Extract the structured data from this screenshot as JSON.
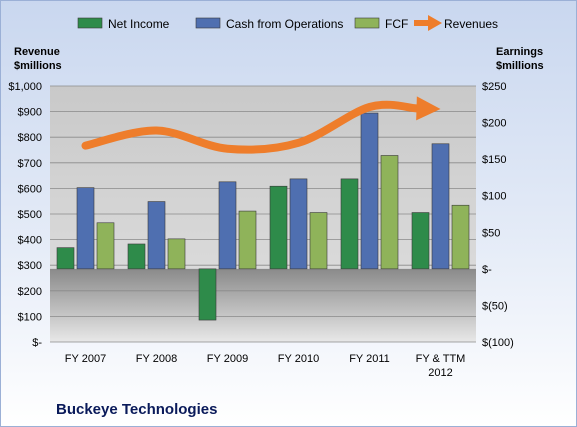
{
  "chart_data": {
    "type": "bar",
    "company": "Buckeye Technologies",
    "categories": [
      [
        "FY 2007"
      ],
      [
        "FY 2008"
      ],
      [
        "FY 2009"
      ],
      [
        "FY 2010"
      ],
      [
        "FY 2011"
      ],
      [
        "FY & TTM",
        "2012"
      ]
    ],
    "left_axis": {
      "title": [
        "Revenue",
        "$millions"
      ],
      "range": [
        0,
        1000
      ],
      "ticks": [
        0,
        100,
        200,
        300,
        400,
        500,
        600,
        700,
        800,
        900,
        1000
      ],
      "tick_labels": [
        "$-",
        "$100",
        "$200",
        "$300",
        "$400",
        "$500",
        "$600",
        "$700",
        "$800",
        "$900",
        "$1,000"
      ]
    },
    "right_axis": {
      "title": [
        "Earnings",
        "$millions"
      ],
      "range": [
        -100,
        250
      ],
      "ticks": [
        -100,
        -50,
        0,
        50,
        100,
        150,
        200,
        250
      ],
      "tick_labels": [
        "$(100)",
        "$(50)",
        "$-",
        "$50",
        "$100",
        "$150",
        "$200",
        "$250"
      ]
    },
    "series": [
      {
        "name": "Net Income",
        "axis": "right",
        "kind": "bar",
        "color": "#2e8b4a",
        "values": [
          29,
          34,
          -70,
          113,
          123,
          77
        ]
      },
      {
        "name": "Cash from Operations",
        "axis": "right",
        "kind": "bar",
        "color": "#4f6fb0",
        "values": [
          111,
          92,
          119,
          123,
          213,
          171
        ]
      },
      {
        "name": "FCF",
        "axis": "right",
        "kind": "bar",
        "color": "#8fb35a",
        "values": [
          63,
          41,
          79,
          77,
          155,
          87
        ]
      },
      {
        "name": "Revenues",
        "axis": "left",
        "kind": "line",
        "color": "#ee7d2b",
        "values": [
          767,
          826,
          755,
          778,
          918,
          910
        ]
      }
    ],
    "grid": true,
    "legend": "top"
  }
}
